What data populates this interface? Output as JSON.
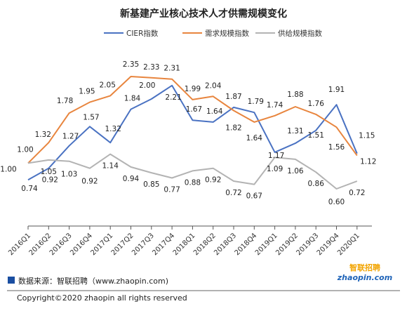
{
  "chart_data": {
    "type": "line",
    "title": "新基建产业核心技术人才供需规模变化",
    "categories": [
      "2016Q1",
      "2016Q2",
      "2016Q3",
      "2016Q4",
      "2017Q1",
      "2017Q2",
      "2017Q3",
      "2017Q4",
      "2018Q1",
      "2018Q2",
      "2018Q3",
      "2018Q4",
      "2019Q1",
      "2019Q2",
      "2019Q3",
      "2019Q4",
      "2020Q1"
    ],
    "series": [
      {
        "name": "CIER指数",
        "color": "#4a72c2",
        "values": [
          0.74,
          0.92,
          1.27,
          1.57,
          1.32,
          1.84,
          2.0,
          2.21,
          1.67,
          1.64,
          1.87,
          1.79,
          1.17,
          1.31,
          1.51,
          1.91,
          1.15
        ]
      },
      {
        "name": "需求规模指数",
        "color": "#e8853e",
        "values": [
          1.0,
          1.32,
          1.78,
          1.95,
          2.05,
          2.35,
          2.33,
          2.31,
          1.99,
          2.04,
          1.82,
          1.64,
          1.74,
          1.88,
          1.76,
          1.56,
          1.12
        ]
      },
      {
        "name": "供给规模指数",
        "color": "#b3b3b3",
        "values": [
          1.0,
          1.05,
          1.03,
          0.92,
          1.14,
          0.94,
          0.85,
          0.77,
          0.88,
          0.92,
          0.72,
          0.67,
          1.09,
          1.06,
          0.86,
          0.6,
          0.72
        ]
      }
    ],
    "ylim": [
      0,
      2.5
    ],
    "grid": false,
    "legend_position": "top-center"
  },
  "footer": {
    "source": "数据来源：智联招聘（www.zhaopin.com)",
    "copyright": "Copyright©2020 zhaopin all rights reserved",
    "logo_cn": "智联招聘",
    "logo_en": "zhaopin.com"
  }
}
